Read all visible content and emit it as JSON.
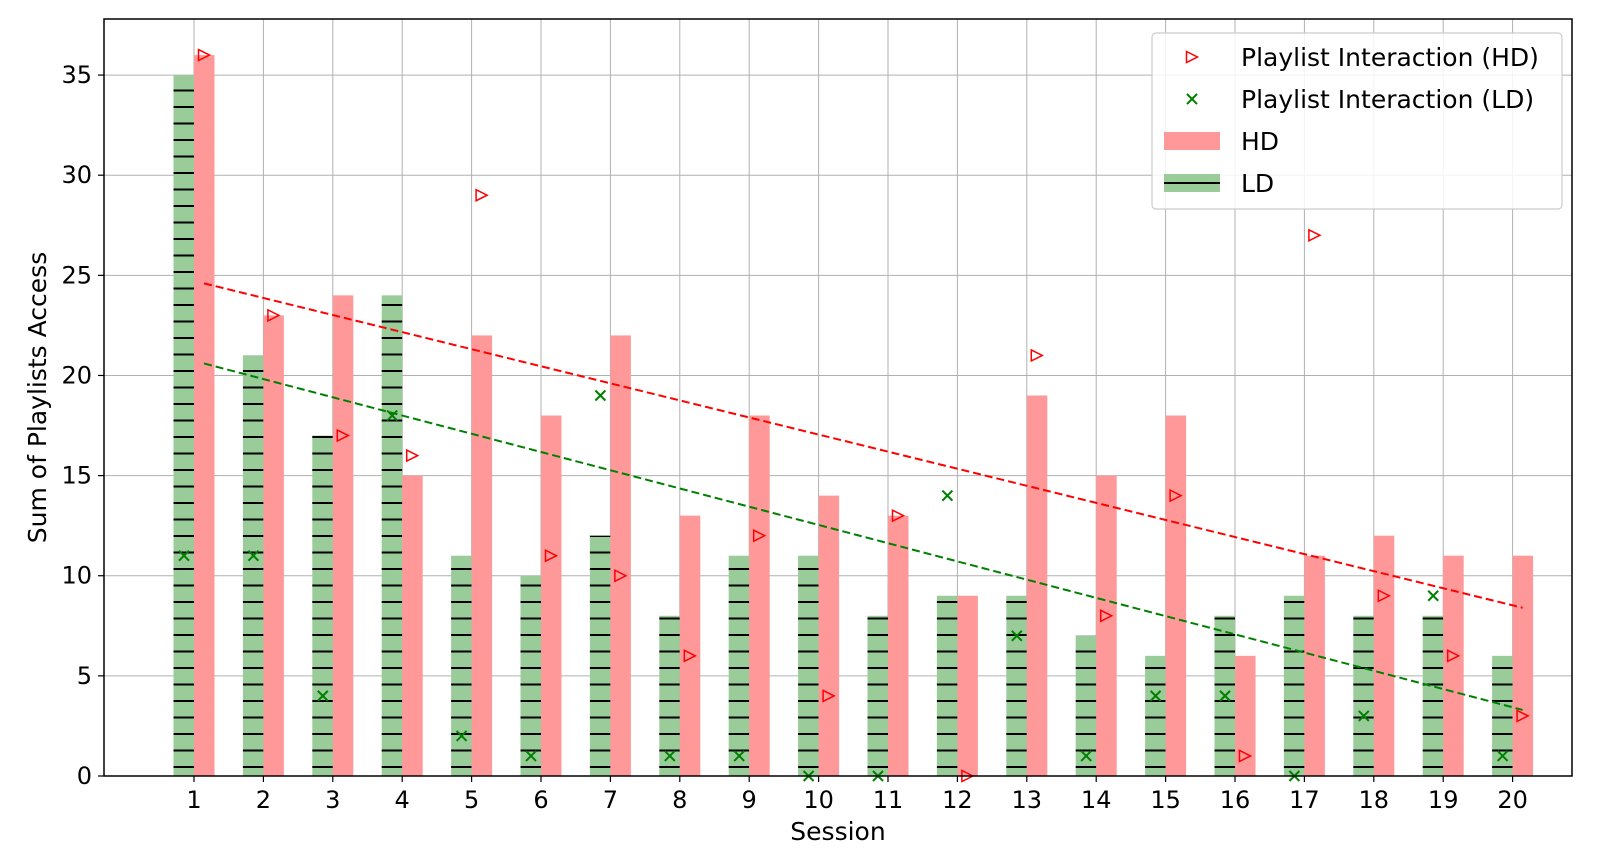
{
  "chart_data": {
    "type": "bar",
    "xlabel": "Session",
    "ylabel": "Sum of Playlists Access",
    "ylim": [
      0,
      37.8
    ],
    "yticks": [
      0,
      5,
      10,
      15,
      20,
      25,
      30,
      35
    ],
    "categories": [
      "1",
      "2",
      "3",
      "4",
      "5",
      "6",
      "7",
      "8",
      "9",
      "10",
      "11",
      "12",
      "13",
      "14",
      "15",
      "16",
      "17",
      "18",
      "19",
      "20"
    ],
    "grid": true,
    "legend_position": "top-right",
    "series": [
      {
        "name": "LD",
        "kind": "bar",
        "color": "#99cc99",
        "hatch": "horizontal-lines",
        "values": [
          35,
          21,
          17,
          24,
          11,
          10,
          12,
          8,
          11,
          11,
          8,
          9,
          9,
          7,
          6,
          8,
          9,
          8,
          8,
          6
        ]
      },
      {
        "name": "HD",
        "kind": "bar",
        "color": "#ff9999",
        "values": [
          36,
          23,
          24,
          15,
          22,
          18,
          22,
          13,
          18,
          14,
          13,
          9,
          19,
          15,
          18,
          6,
          11,
          12,
          11,
          11
        ]
      },
      {
        "name": "Playlist Interaction (HD)",
        "kind": "scatter",
        "marker": "triangle-right",
        "color": "#ff0000",
        "values": [
          36,
          23,
          17,
          16,
          29,
          11,
          10,
          6,
          12,
          4,
          13,
          0,
          21,
          8,
          14,
          1,
          27,
          9,
          6,
          3
        ]
      },
      {
        "name": "Playlist Interaction (LD)",
        "kind": "scatter",
        "marker": "x",
        "color": "#008000",
        "values": [
          11,
          11,
          4,
          18,
          2,
          1,
          19,
          1,
          1,
          0,
          0,
          14,
          7,
          1,
          4,
          4,
          0,
          3,
          9,
          1
        ]
      }
    ],
    "trendlines": [
      {
        "series": "HD",
        "color": "#ff0000",
        "style": "dashed",
        "start": 24.6,
        "end": 8.4
      },
      {
        "series": "LD",
        "color": "#008000",
        "style": "dashed",
        "start": 20.6,
        "end": 3.3
      }
    ],
    "legend": [
      {
        "label": "Playlist Interaction (HD)",
        "swatch": "triangle-right",
        "color": "#ff0000"
      },
      {
        "label": "Playlist Interaction (LD)",
        "swatch": "x",
        "color": "#008000"
      },
      {
        "label": "HD",
        "swatch": "bar",
        "color": "#ff9999"
      },
      {
        "label": "LD",
        "swatch": "bar-hatched",
        "color": "#99cc99"
      }
    ]
  }
}
